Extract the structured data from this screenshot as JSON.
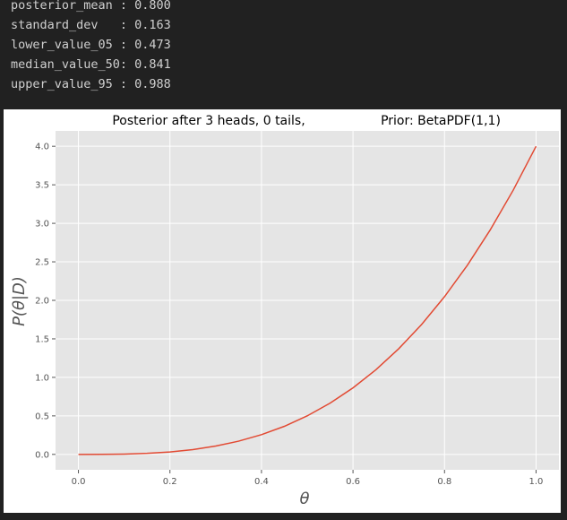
{
  "console": {
    "lines": [
      "posterior_mean : 0.800",
      "standard_dev   : 0.163",
      "lower_value_05 : 0.473",
      "median_value_50: 0.841",
      "upper_value_95 : 0.988"
    ]
  },
  "chart_data": {
    "type": "line",
    "title_left": "Posterior after 3 heads, 0 tails,",
    "title_right": "Prior: BetaPDF(1,1)",
    "xlabel": "θ",
    "ylabel": "P(θ|D)",
    "xlim": [
      -0.05,
      1.05
    ],
    "ylim": [
      -0.2,
      4.2
    ],
    "xticks": [
      "0.0",
      "0.2",
      "0.4",
      "0.6",
      "0.8",
      "1.0"
    ],
    "yticks": [
      "0.0",
      "0.5",
      "1.0",
      "1.5",
      "2.0",
      "2.5",
      "3.0",
      "3.5",
      "4.0"
    ],
    "grid": true,
    "series": [
      {
        "color": "#e24a33",
        "x": [
          0.0,
          0.05,
          0.1,
          0.15,
          0.2,
          0.25,
          0.3,
          0.35,
          0.4,
          0.45,
          0.5,
          0.55,
          0.6,
          0.65,
          0.7,
          0.75,
          0.8,
          0.85,
          0.9,
          0.95,
          1.0
        ],
        "y": [
          0.0,
          0.0005,
          0.004,
          0.0135,
          0.032,
          0.0625,
          0.108,
          0.1715,
          0.256,
          0.3645,
          0.5,
          0.6655,
          0.864,
          1.0985,
          1.372,
          1.6875,
          2.048,
          2.4565,
          2.916,
          3.4295,
          4.0
        ]
      }
    ],
    "colors": {
      "axes_bg": "#e5e5e5",
      "grid": "#ffffff",
      "tick_text": "#555555"
    }
  }
}
